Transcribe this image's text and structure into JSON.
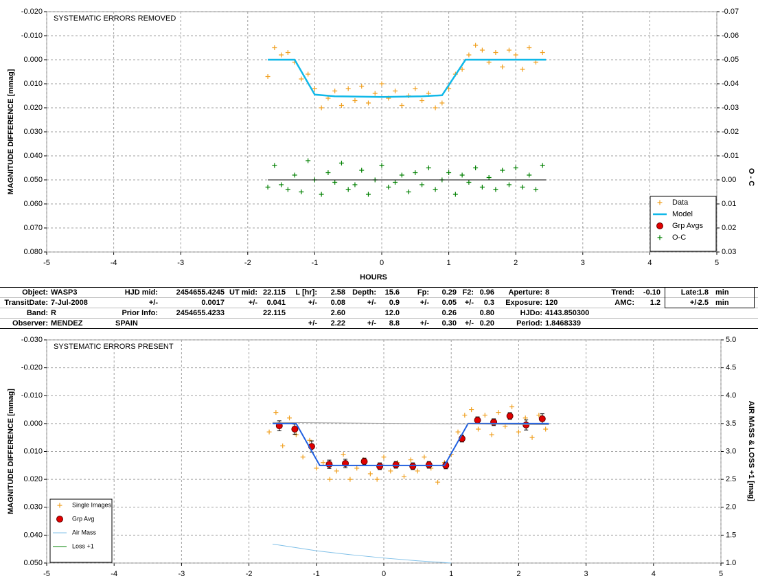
{
  "chart_data": [
    {
      "type": "scatter",
      "title": "SYSTEMATIC ERRORS REMOVED",
      "x_label": "HOURS",
      "y_label": "MAGNITUDE DIFFERENCE [mmag]",
      "y2_label": "O - C",
      "xlim": [
        -5,
        5
      ],
      "xticks": [
        -5,
        -4,
        -3,
        -2,
        -1,
        0,
        1,
        2,
        3,
        4,
        5
      ],
      "ylim": [
        -0.02,
        0.08
      ],
      "y_inverted": true,
      "yticks": [
        {
          "value": -0.02,
          "label": "-0.020"
        },
        {
          "value": -0.01,
          "label": "-0.010"
        },
        {
          "value": 0,
          "label": "0.000"
        },
        {
          "value": 0.01,
          "label": "0.010"
        },
        {
          "value": 0.02,
          "label": "0.020"
        },
        {
          "value": 0.03,
          "label": "0.030"
        },
        {
          "value": 0.04,
          "label": "0.040"
        },
        {
          "value": 0.05,
          "label": "0.050"
        },
        {
          "value": 0.06,
          "label": "0.060"
        },
        {
          "value": 0.07,
          "label": "0.070"
        },
        {
          "value": 0.08,
          "label": "0.080"
        }
      ],
      "y2lim": [
        -0.07,
        0.03
      ],
      "y2_inverted": true,
      "y2ticks": [
        -0.07,
        -0.06,
        -0.05,
        -0.04,
        -0.03,
        -0.02,
        -0.01,
        {
          "value": 0,
          "label": "0.00"
        },
        0.01,
        0.02,
        0.03
      ],
      "grid": true,
      "legend": "lower right",
      "series": [
        {
          "name": "Data",
          "color": "#f0a020",
          "marker": "plus",
          "line": false,
          "x": [
            -1.7,
            -1.6,
            -1.5,
            -1.4,
            -1.3,
            -1.2,
            -1.1,
            -1.0,
            -0.9,
            -0.8,
            -0.7,
            -0.6,
            -0.5,
            -0.4,
            -0.3,
            -0.2,
            -0.1,
            0,
            0.1,
            0.2,
            0.3,
            0.4,
            0.5,
            0.6,
            0.7,
            0.8,
            0.9,
            1.0,
            1.1,
            1.2,
            1.3,
            1.4,
            1.5,
            1.6,
            1.7,
            1.8,
            1.9,
            2.0,
            2.1,
            2.2,
            2.3,
            2.4
          ],
          "values": [
            0.007,
            -0.005,
            -0.002,
            -0.003,
            0.001,
            0.008,
            0.006,
            0.012,
            0.02,
            0.016,
            0.013,
            0.019,
            0.012,
            0.017,
            0.011,
            0.018,
            0.014,
            0.01,
            0.016,
            0.013,
            0.019,
            0.015,
            0.012,
            0.017,
            0.014,
            0.02,
            0.018,
            0.012,
            0.006,
            0.004,
            -0.002,
            -0.006,
            -0.004,
            0.001,
            -0.003,
            0.003,
            -0.004,
            -0.002,
            0.004,
            -0.005,
            0.001,
            -0.003
          ]
        },
        {
          "name": "Model",
          "color": "#10b8e8",
          "marker": "none",
          "line": true,
          "width": 2.5,
          "x": [
            -1.7,
            -1.3,
            -1.0,
            -0.7,
            0,
            0.6,
            0.9,
            1.25,
            2.45
          ],
          "values": [
            0,
            0,
            0.0145,
            0.0152,
            0.0155,
            0.0152,
            0.0148,
            0,
            0
          ]
        },
        {
          "name": "Grp Avgs",
          "color": "#e00000",
          "marker": "circle",
          "line": false,
          "x": [],
          "values": []
        },
        {
          "name": "O-C",
          "color": "#008000",
          "marker": "plus",
          "line": false,
          "axis": "y2",
          "x": [
            -1.7,
            -1.6,
            -1.5,
            -1.4,
            -1.3,
            -1.2,
            -1.1,
            -1.0,
            -0.9,
            -0.8,
            -0.7,
            -0.6,
            -0.5,
            -0.4,
            -0.3,
            -0.2,
            -0.1,
            0,
            0.1,
            0.2,
            0.3,
            0.4,
            0.5,
            0.6,
            0.7,
            0.8,
            0.9,
            1.0,
            1.1,
            1.2,
            1.3,
            1.4,
            1.5,
            1.6,
            1.7,
            1.8,
            1.9,
            2.0,
            2.1,
            2.2,
            2.3,
            2.4
          ],
          "values": [
            0.003,
            -0.006,
            0.002,
            0.004,
            -0.002,
            0.005,
            -0.008,
            0.0,
            0.006,
            -0.003,
            0.001,
            -0.007,
            0.004,
            0.002,
            -0.004,
            0.006,
            0.0,
            -0.006,
            0.003,
            0.001,
            -0.002,
            0.005,
            -0.003,
            0.002,
            -0.005,
            0.004,
            0.0,
            -0.003,
            0.006,
            -0.002,
            0.001,
            -0.005,
            0.003,
            -0.001,
            0.004,
            -0.004,
            0.002,
            -0.005,
            0.003,
            -0.002,
            0.004,
            -0.006
          ]
        },
        {
          "color": "#000000",
          "marker": "none",
          "line": true,
          "width": 1,
          "axis": "y2",
          "x": [
            -1.7,
            2.45
          ],
          "values": [
            0,
            0
          ]
        }
      ]
    },
    {
      "type": "scatter",
      "title": "SYSTEMATIC ERRORS PRESENT",
      "y_label": "MAGNITUDE DIFFERENCE [mmag]",
      "y2_label": "AIR MASS & LOSS +1 [mag]",
      "xlim": [
        -5,
        5
      ],
      "xticks": [
        -5,
        -4,
        -3,
        -2,
        -1,
        0,
        1,
        2,
        3,
        4,
        5
      ],
      "ylim": [
        -0.03,
        0.05
      ],
      "y_inverted": true,
      "yticks": [
        {
          "value": -0.03,
          "label": "-0.030"
        },
        {
          "value": -0.02,
          "label": "-0.020"
        },
        {
          "value": -0.01,
          "label": "-0.010"
        },
        {
          "value": 0,
          "label": "0.000"
        },
        {
          "value": 0.01,
          "label": "0.010"
        },
        {
          "value": 0.02,
          "label": "0.020"
        },
        {
          "value": 0.03,
          "label": "0.030"
        },
        {
          "value": 0.04,
          "label": "0.040"
        },
        {
          "value": 0.05,
          "label": "0.050"
        }
      ],
      "y2lim": [
        1,
        5
      ],
      "y2_inverted": false,
      "y2ticks": [
        {
          "value": 5,
          "label": "5.0"
        },
        4.5,
        {
          "value": 4,
          "label": "4.0"
        },
        3.5,
        {
          "value": 3,
          "label": "3.0"
        },
        2.5,
        {
          "value": 2,
          "label": "2.0"
        },
        1.5,
        {
          "value": 1,
          "label": "1.0"
        }
      ],
      "grid": true,
      "legend": "lower left",
      "series": [
        {
          "name": "Single Images",
          "color": "#f0a020",
          "marker": "plus",
          "line": false,
          "x": [
            -1.7,
            -1.6,
            -1.5,
            -1.4,
            -1.3,
            -1.2,
            -1.1,
            -1.0,
            -0.9,
            -0.8,
            -0.7,
            -0.6,
            -0.5,
            -0.4,
            -0.3,
            -0.2,
            -0.1,
            0,
            0.1,
            0.2,
            0.3,
            0.4,
            0.5,
            0.6,
            0.7,
            0.8,
            0.9,
            1.0,
            1.1,
            1.2,
            1.3,
            1.4,
            1.5,
            1.6,
            1.7,
            1.8,
            1.9,
            2.0,
            2.1,
            2.2,
            2.3,
            2.4
          ],
          "values": [
            0.003,
            -0.004,
            0.008,
            -0.002,
            0.004,
            0.012,
            0.006,
            0.016,
            0.014,
            0.02,
            0.017,
            0.011,
            0.02,
            0.016,
            0.013,
            0.018,
            0.02,
            0.012,
            0.017,
            0.014,
            0.019,
            0.013,
            0.017,
            0.012,
            0.016,
            0.021,
            0.014,
            0.011,
            0.003,
            -0.003,
            -0.005,
            0.002,
            -0.003,
            0.004,
            -0.004,
            0.001,
            -0.006,
            0.003,
            -0.002,
            0.005,
            -0.003,
            0.002
          ]
        },
        {
          "name": "Grp Avg",
          "color": "#e00000",
          "marker": "circle",
          "line": false,
          "x": [
            -1.55,
            -1.32,
            -1.07,
            -0.81,
            -0.57,
            -0.29,
            -0.06,
            0.18,
            0.43,
            0.67,
            0.92,
            1.16,
            1.39,
            1.63,
            1.87,
            2.11,
            2.35
          ],
          "values": [
            0.0008,
            0.002,
            0.0082,
            0.0146,
            0.0143,
            0.0136,
            0.0153,
            0.0148,
            0.0153,
            0.0148,
            0.015,
            0.0054,
            -0.0012,
            -0.0005,
            -0.0027,
            0.0005,
            -0.0017
          ],
          "errors": [
            0.0018,
            0.0018,
            0.002,
            0.0015,
            0.0015,
            0.0012,
            0.0012,
            0.0012,
            0.0012,
            0.0012,
            0.0012,
            0.0012,
            0.0012,
            0.0012,
            0.0012,
            0.0018,
            0.0018
          ]
        },
        {
          "color": "#2060e0",
          "marker": "none",
          "line": true,
          "width": 2,
          "x": [
            -1.65,
            -1.3,
            -0.95,
            0.9,
            1.25,
            2.45
          ],
          "values": [
            0,
            0,
            0.015,
            0.015,
            0,
            0
          ]
        },
        {
          "color": "#999999",
          "marker": "none",
          "line": true,
          "width": 1,
          "x": [
            -1.65,
            2.45
          ],
          "values": [
            -0.0004,
            0.0004
          ]
        },
        {
          "name": "Air Mass",
          "color": "#80c0e8",
          "marker": "none",
          "line": true,
          "width": 1,
          "axis": "y2",
          "x": [
            -1.65,
            -1.0,
            -0.5,
            0,
            0.5,
            1.0
          ],
          "values": [
            1.34,
            1.22,
            1.15,
            1.09,
            1.04,
            1.0
          ]
        },
        {
          "name": "Loss +1",
          "color": "#008000",
          "marker": "none",
          "line": true,
          "width": 1,
          "axis": "y2",
          "x": [],
          "values": []
        }
      ]
    }
  ],
  "table": {
    "rows": [
      [
        "Object:",
        "WASP3",
        "HJD mid:",
        "2454655.4245",
        "UT mid:",
        "22.115",
        "L [hr]:",
        "2.58",
        "Depth:",
        "15.6",
        "Fp:",
        "0.29",
        "F2:",
        "0.96",
        "Aperture:",
        "8",
        "Trend:",
        "-0.10",
        "Late:",
        "1.8",
        "min"
      ],
      [
        "TransitDate:",
        "7-Jul-2008",
        "+/-",
        "0.0017",
        "+/-",
        "0.041",
        "+/-",
        "0.08",
        "+/-",
        "0.9",
        "+/-",
        "0.05",
        "+/-",
        "0.3",
        "Exposure:",
        "120",
        "AMC:",
        "1.2",
        "+/-",
        "2.5",
        "min"
      ],
      [
        "Band:",
        "R",
        "Prior Info:",
        "2454655.4233",
        null,
        "22.115",
        null,
        "2.60",
        null,
        "12.0",
        null,
        "0.26",
        null,
        "0.80",
        "HJDo:",
        "4143.850300",
        null,
        null,
        null,
        null,
        null
      ],
      [
        "Observer:",
        "MENDEZ",
        "SPAIN",
        null,
        null,
        null,
        "+/-",
        "2.22",
        "+/-",
        "8.8",
        "+/-",
        "0.30",
        "+/-",
        "0.20",
        "Period:",
        "1.8468339",
        null,
        null,
        null,
        null,
        null
      ]
    ]
  }
}
